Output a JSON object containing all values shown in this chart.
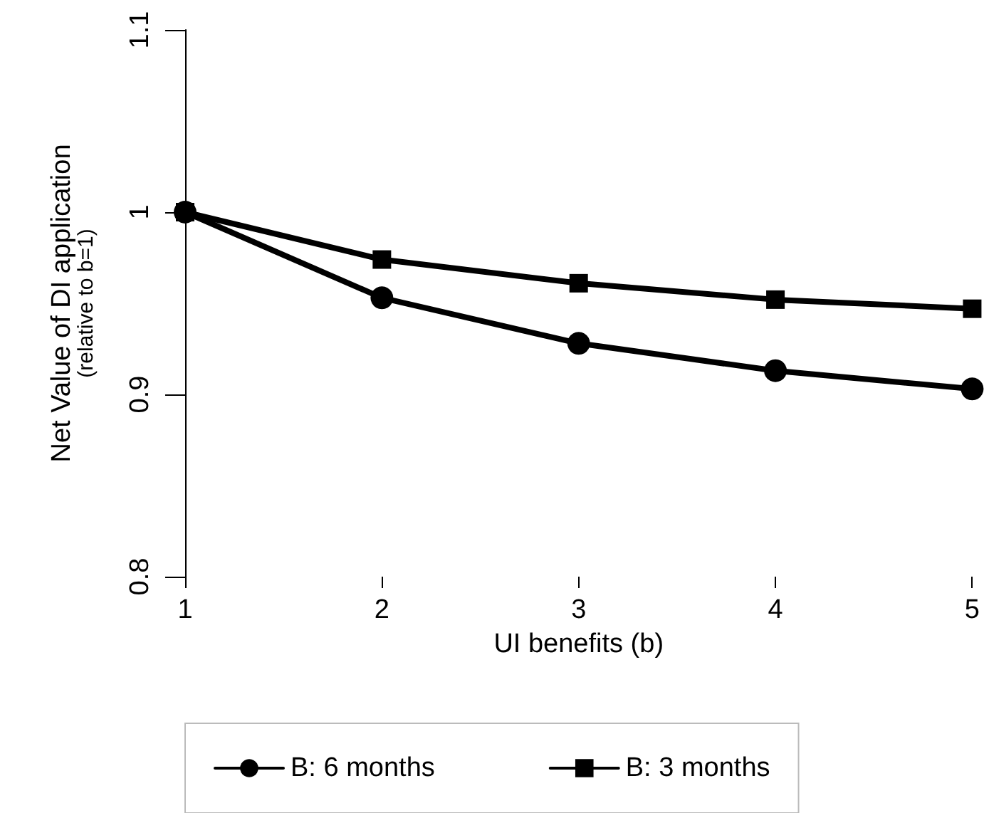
{
  "chart_data": {
    "type": "line",
    "xlabel": "UI benefits (b)",
    "ylabel": "Net Value of DI application\n(relative to b=1)",
    "x": [
      1,
      2,
      3,
      4,
      5
    ],
    "series": [
      {
        "name": "B: 6 months",
        "color": "#000000",
        "marker": "circle",
        "values": [
          1.0,
          0.953,
          0.928,
          0.913,
          0.903
        ]
      },
      {
        "name": "B: 3 months",
        "color": "#000000",
        "marker": "square",
        "values": [
          1.0,
          0.974,
          0.961,
          0.952,
          0.947
        ]
      }
    ],
    "xlim": [
      1,
      5
    ],
    "xticks": [
      1,
      2,
      3,
      4,
      5
    ],
    "ylim": [
      0.8,
      1.1
    ],
    "yticks": [
      0.8,
      0.9,
      1,
      1.1
    ],
    "grid": false,
    "legend": "bottom",
    "line_style": "solid"
  }
}
